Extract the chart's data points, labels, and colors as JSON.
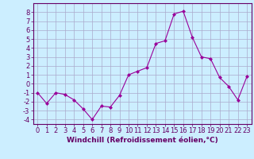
{
  "x": [
    0,
    1,
    2,
    3,
    4,
    5,
    6,
    7,
    8,
    9,
    10,
    11,
    12,
    13,
    14,
    15,
    16,
    17,
    18,
    19,
    20,
    21,
    22,
    23
  ],
  "y": [
    -1.0,
    -2.2,
    -1.0,
    -1.2,
    -1.8,
    -2.8,
    -4.0,
    -2.5,
    -2.6,
    -1.3,
    1.0,
    1.4,
    1.8,
    4.5,
    4.8,
    7.8,
    8.1,
    5.2,
    3.0,
    2.8,
    0.7,
    -0.3,
    -1.8,
    0.8
  ],
  "xlim": [
    -0.5,
    23.5
  ],
  "ylim": [
    -4.5,
    9.0
  ],
  "yticks": [
    -4,
    -3,
    -2,
    -1,
    0,
    1,
    2,
    3,
    4,
    5,
    6,
    7,
    8
  ],
  "xticks": [
    0,
    1,
    2,
    3,
    4,
    5,
    6,
    7,
    8,
    9,
    10,
    11,
    12,
    13,
    14,
    15,
    16,
    17,
    18,
    19,
    20,
    21,
    22,
    23
  ],
  "line_color": "#990099",
  "marker_color": "#990099",
  "bg_color": "#cceeff",
  "grid_color": "#aaaacc",
  "axis_color": "#660066",
  "spine_color": "#660066",
  "xlabel": "Windchill (Refroidissement éolien,°C)",
  "xlabel_fontsize": 6.5,
  "tick_fontsize": 6.0
}
